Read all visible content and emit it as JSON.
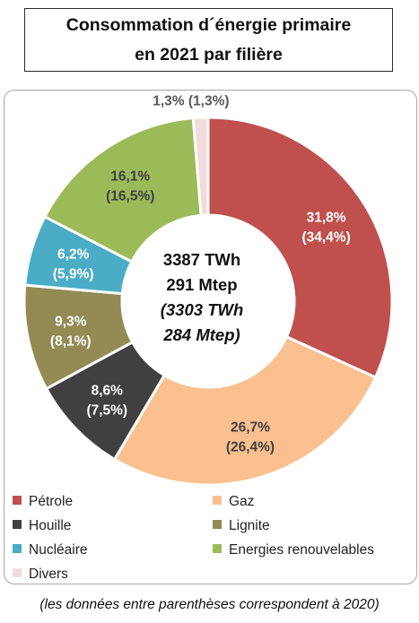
{
  "title": {
    "line1": "Consommation d´énergie primaire",
    "line2": "en 2021 par filière"
  },
  "chart_data": {
    "type": "donut",
    "series": [
      {
        "name": "Pétrole",
        "value_2021": 31.8,
        "value_2020": 34.4,
        "label_2021": "31,8%",
        "label_2020": "(34,4%)",
        "color": "#C0504D",
        "label_color": "#ffffff"
      },
      {
        "name": "Gaz",
        "value_2021": 26.7,
        "value_2020": 26.4,
        "label_2021": "26,7%",
        "label_2020": "(26,4%)",
        "color": "#FAC090",
        "label_color": "#404040"
      },
      {
        "name": "Houille",
        "value_2021": 8.6,
        "value_2020": 7.5,
        "label_2021": "8,6%",
        "label_2020": "(7,5%)",
        "color": "#404040",
        "label_color": "#ffffff"
      },
      {
        "name": "Lignite",
        "value_2021": 9.3,
        "value_2020": 8.1,
        "label_2021": "9,3%",
        "label_2020": "(8,1%)",
        "color": "#948A54",
        "label_color": "#ffffff"
      },
      {
        "name": "Nucléaire",
        "value_2021": 6.2,
        "value_2020": 5.9,
        "label_2021": "6,2%",
        "label_2020": "(5,9%)",
        "color": "#4BACC6",
        "label_color": "#ffffff"
      },
      {
        "name": "Energies renouvelables",
        "value_2021": 16.1,
        "value_2020": 16.5,
        "label_2021": "16,1%",
        "label_2020": "(16,5%)",
        "color": "#9BBB59",
        "label_color": "#404040"
      },
      {
        "name": "Divers",
        "value_2021": 1.3,
        "value_2020": 1.3,
        "label_2021": "1,3%",
        "label_2020": "(1,3%)",
        "color": "#F2DCDB",
        "label_color": "#595959"
      }
    ],
    "center": {
      "line1": "3387 TWh",
      "line2": "291 Mtep",
      "line3": "(3303 TWh",
      "line4": "284 Mtep)"
    },
    "legend_position": "bottom"
  },
  "footnote": "(les données entre parenthèses correspondent à 2020)"
}
